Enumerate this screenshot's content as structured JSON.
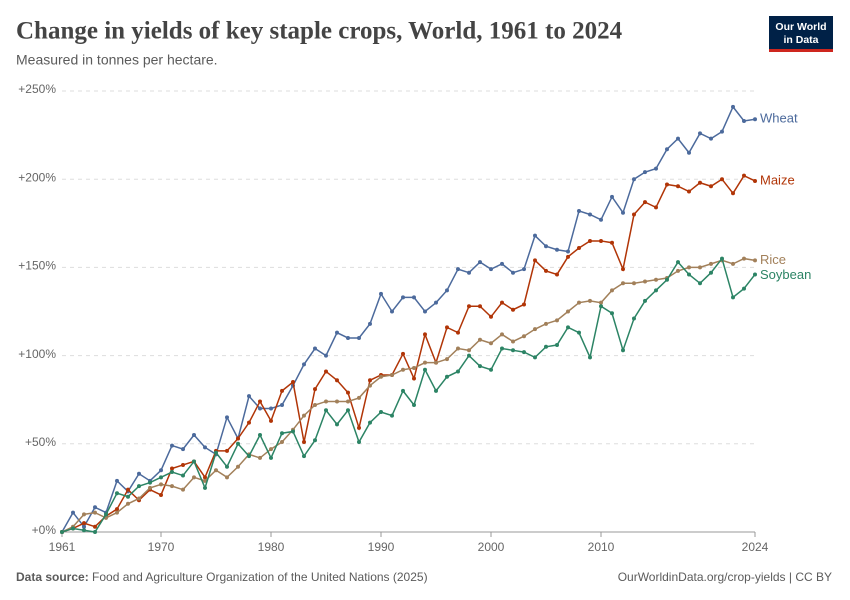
{
  "chart_data": {
    "type": "line",
    "title": "Change in yields of key staple crops, World, 1961 to 2024",
    "subtitle": "Measured in tonnes per hectare.",
    "source_label": "Data source:",
    "source_text": "Food and Agriculture Organization of the United Nations (2025)",
    "url": "OurWorldinData.org/crop-yields | CC BY",
    "logo": [
      "Our World",
      "in Data"
    ],
    "x": [
      1961,
      1962,
      1963,
      1964,
      1965,
      1966,
      1967,
      1968,
      1969,
      1970,
      1971,
      1972,
      1973,
      1974,
      1975,
      1976,
      1977,
      1978,
      1979,
      1980,
      1981,
      1982,
      1983,
      1984,
      1985,
      1986,
      1987,
      1988,
      1989,
      1990,
      1991,
      1992,
      1993,
      1994,
      1995,
      1996,
      1997,
      1998,
      1999,
      2000,
      2001,
      2002,
      2003,
      2004,
      2005,
      2006,
      2007,
      2008,
      2009,
      2010,
      2011,
      2012,
      2013,
      2014,
      2015,
      2016,
      2017,
      2018,
      2019,
      2020,
      2021,
      2022,
      2023,
      2024
    ],
    "xlim": [
      1961,
      2024
    ],
    "xticks": [
      1961,
      1970,
      1980,
      1990,
      2000,
      2010,
      2024
    ],
    "ylim": [
      0,
      250
    ],
    "yticks": [
      {
        "value": 0,
        "label": "+0%"
      },
      {
        "value": 50,
        "label": "+50%"
      },
      {
        "value": 100,
        "label": "+100%"
      },
      {
        "value": 150,
        "label": "+150%"
      },
      {
        "value": 200,
        "label": "+200%"
      },
      {
        "value": 250,
        "label": "+250%"
      }
    ],
    "grid": true,
    "series": [
      {
        "name": "Wheat",
        "color": "#4c6a9c",
        "values": [
          0,
          11,
          3,
          14,
          11,
          29,
          23,
          33,
          29,
          35,
          49,
          47,
          55,
          48,
          44,
          65,
          53,
          77,
          70,
          70,
          72,
          83,
          95,
          104,
          100,
          113,
          110,
          110,
          118,
          135,
          125,
          133,
          133,
          125,
          130,
          137,
          149,
          147,
          153,
          149,
          152,
          147,
          149,
          168,
          162,
          160,
          159,
          182,
          180,
          177,
          190,
          181,
          200,
          204,
          206,
          217,
          223,
          215,
          226,
          223,
          227,
          241,
          233,
          234
        ]
      },
      {
        "name": "Maize",
        "color": "#b13507",
        "values": [
          0,
          2,
          5,
          3,
          9,
          13,
          24,
          18,
          24,
          21,
          36,
          38,
          40,
          31,
          46,
          46,
          53,
          62,
          74,
          63,
          80,
          85,
          51,
          81,
          91,
          86,
          79,
          59,
          86,
          89,
          89,
          101,
          87,
          112,
          96,
          116,
          113,
          128,
          128,
          122,
          130,
          126,
          129,
          154,
          148,
          146,
          156,
          161,
          165,
          165,
          164,
          149,
          180,
          187,
          184,
          197,
          196,
          193,
          198,
          196,
          200,
          192,
          202,
          199
        ]
      },
      {
        "name": "Rice",
        "color": "#a2805a",
        "values": [
          0,
          3,
          10,
          11,
          8,
          11,
          16,
          19,
          25,
          27,
          26,
          24,
          31,
          29,
          35,
          31,
          37,
          44,
          42,
          47,
          51,
          58,
          66,
          72,
          74,
          74,
          74,
          76,
          83,
          88,
          89,
          92,
          93,
          96,
          96,
          98,
          104,
          103,
          109,
          107,
          112,
          108,
          111,
          115,
          118,
          120,
          125,
          130,
          131,
          130,
          137,
          141,
          141,
          142,
          143,
          144,
          148,
          150,
          150,
          152,
          154,
          152,
          155,
          154
        ]
      },
      {
        "name": "Soybean",
        "color": "#2c8465",
        "values": [
          0,
          2,
          1,
          0,
          10,
          22,
          20,
          26,
          28,
          31,
          34,
          32,
          40,
          25,
          45,
          37,
          50,
          43,
          55,
          42,
          56,
          57,
          43,
          52,
          69,
          61,
          69,
          51,
          62,
          68,
          66,
          80,
          72,
          92,
          80,
          88,
          91,
          100,
          94,
          92,
          104,
          103,
          102,
          99,
          105,
          106,
          116,
          113,
          99,
          128,
          124,
          103,
          121,
          131,
          137,
          143,
          153,
          146,
          141,
          147,
          155,
          133,
          138,
          146
        ]
      }
    ]
  }
}
